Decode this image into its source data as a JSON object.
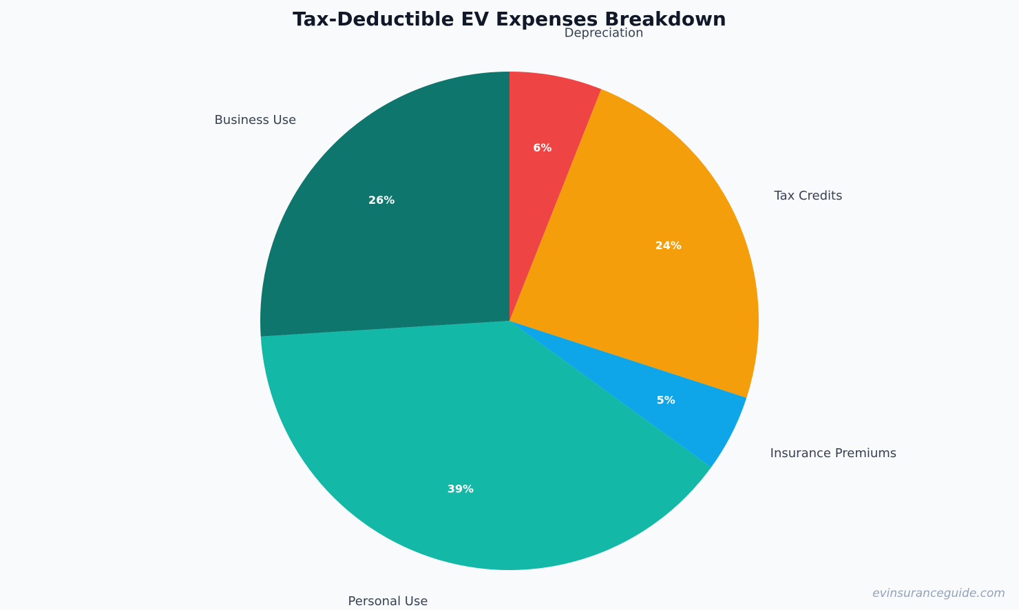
{
  "watermark": "evinsuranceguide.com",
  "chart_data": {
    "type": "pie",
    "title": "Tax-Deductible EV Expenses Breakdown",
    "start": "top",
    "direction": "clockwise",
    "slices": [
      {
        "label": "Depreciation",
        "value": 6,
        "percent_label": "6%",
        "color": "#ef4444"
      },
      {
        "label": "Tax Credits",
        "value": 24,
        "percent_label": "24%",
        "color": "#f59e0b"
      },
      {
        "label": "Insurance Premiums",
        "value": 5,
        "percent_label": "5%",
        "color": "#0ea5e9"
      },
      {
        "label": "Personal Use",
        "value": 39,
        "percent_label": "39%",
        "color": "#14b8a6"
      },
      {
        "label": "Business Use",
        "value": 26,
        "percent_label": "26%",
        "color": "#0f766e"
      }
    ]
  }
}
